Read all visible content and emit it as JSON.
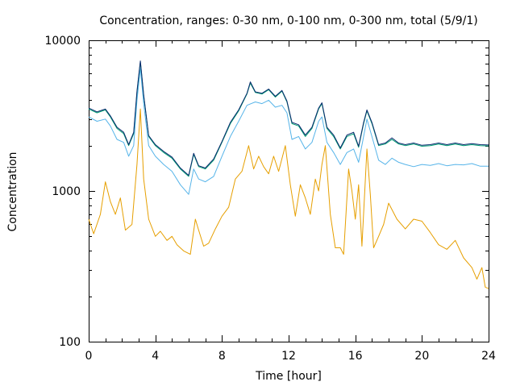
{
  "chart_data": {
    "type": "line",
    "title": "Concentration, ranges: 0-30 nm, 0-100 nm, 0-300 nm, total (5/9/1)",
    "xlabel": "Time [hour]",
    "ylabel": "Concentration",
    "xlim": [
      0,
      24
    ],
    "ylim": [
      100,
      10000
    ],
    "yscale": "log",
    "grid": false,
    "x_ticks": [
      0,
      4,
      8,
      12,
      16,
      20,
      24
    ],
    "y_ticks": [
      100,
      1000,
      10000
    ],
    "series": [
      {
        "color": "#e69f00",
        "points": [
          [
            0,
            650
          ],
          [
            0.3,
            520
          ],
          [
            0.7,
            700
          ],
          [
            1.0,
            1150
          ],
          [
            1.3,
            850
          ],
          [
            1.6,
            700
          ],
          [
            1.9,
            900
          ],
          [
            2.2,
            550
          ],
          [
            2.6,
            600
          ],
          [
            2.9,
            1500
          ],
          [
            3.1,
            3500
          ],
          [
            3.3,
            1200
          ],
          [
            3.6,
            650
          ],
          [
            4.0,
            500
          ],
          [
            4.3,
            540
          ],
          [
            4.7,
            470
          ],
          [
            5.0,
            500
          ],
          [
            5.3,
            440
          ],
          [
            5.7,
            400
          ],
          [
            6.1,
            380
          ],
          [
            6.4,
            650
          ],
          [
            6.6,
            550
          ],
          [
            6.9,
            430
          ],
          [
            7.2,
            450
          ],
          [
            7.6,
            560
          ],
          [
            8.0,
            680
          ],
          [
            8.4,
            780
          ],
          [
            8.8,
            1200
          ],
          [
            9.2,
            1350
          ],
          [
            9.6,
            2000
          ],
          [
            9.9,
            1400
          ],
          [
            10.2,
            1700
          ],
          [
            10.5,
            1450
          ],
          [
            10.8,
            1300
          ],
          [
            11.1,
            1700
          ],
          [
            11.4,
            1350
          ],
          [
            11.8,
            2000
          ],
          [
            12.1,
            1100
          ],
          [
            12.4,
            680
          ],
          [
            12.7,
            1100
          ],
          [
            13.0,
            900
          ],
          [
            13.3,
            700
          ],
          [
            13.6,
            1200
          ],
          [
            13.8,
            1000
          ],
          [
            14.0,
            1500
          ],
          [
            14.2,
            2000
          ],
          [
            14.5,
            700
          ],
          [
            14.8,
            420
          ],
          [
            15.1,
            420
          ],
          [
            15.3,
            380
          ],
          [
            15.6,
            1400
          ],
          [
            15.8,
            1000
          ],
          [
            16.0,
            650
          ],
          [
            16.2,
            1100
          ],
          [
            16.4,
            430
          ],
          [
            16.7,
            1900
          ],
          [
            16.9,
            950
          ],
          [
            17.1,
            420
          ],
          [
            17.4,
            500
          ],
          [
            17.7,
            600
          ],
          [
            18.0,
            830
          ],
          [
            18.5,
            650
          ],
          [
            19.0,
            560
          ],
          [
            19.5,
            650
          ],
          [
            20.0,
            630
          ],
          [
            20.5,
            530
          ],
          [
            21.0,
            440
          ],
          [
            21.5,
            410
          ],
          [
            22.0,
            470
          ],
          [
            22.5,
            360
          ],
          [
            23.0,
            310
          ],
          [
            23.3,
            260
          ],
          [
            23.6,
            310
          ],
          [
            23.8,
            230
          ],
          [
            24.0,
            225
          ]
        ]
      },
      {
        "color": "#56b4e9",
        "points": [
          [
            0,
            3100
          ],
          [
            0.5,
            2900
          ],
          [
            1.0,
            3000
          ],
          [
            1.3,
            2700
          ],
          [
            1.7,
            2200
          ],
          [
            2.1,
            2100
          ],
          [
            2.4,
            1700
          ],
          [
            2.7,
            2000
          ],
          [
            2.9,
            4000
          ],
          [
            3.1,
            6500
          ],
          [
            3.3,
            3800
          ],
          [
            3.6,
            2000
          ],
          [
            4.0,
            1700
          ],
          [
            4.5,
            1500
          ],
          [
            5.0,
            1350
          ],
          [
            5.5,
            1100
          ],
          [
            6.0,
            950
          ],
          [
            6.3,
            1400
          ],
          [
            6.6,
            1200
          ],
          [
            7.0,
            1150
          ],
          [
            7.5,
            1250
          ],
          [
            8.0,
            1700
          ],
          [
            8.5,
            2300
          ],
          [
            9.0,
            2900
          ],
          [
            9.5,
            3700
          ],
          [
            10.0,
            3900
          ],
          [
            10.4,
            3800
          ],
          [
            10.8,
            4000
          ],
          [
            11.2,
            3600
          ],
          [
            11.6,
            3700
          ],
          [
            11.9,
            3300
          ],
          [
            12.2,
            2200
          ],
          [
            12.6,
            2300
          ],
          [
            13.0,
            1900
          ],
          [
            13.4,
            2100
          ],
          [
            13.8,
            2900
          ],
          [
            14.0,
            3100
          ],
          [
            14.3,
            2100
          ],
          [
            14.7,
            1800
          ],
          [
            15.1,
            1500
          ],
          [
            15.5,
            1800
          ],
          [
            15.9,
            1900
          ],
          [
            16.2,
            1550
          ],
          [
            16.5,
            2300
          ],
          [
            16.7,
            3000
          ],
          [
            17.0,
            2300
          ],
          [
            17.4,
            1600
          ],
          [
            17.8,
            1500
          ],
          [
            18.2,
            1650
          ],
          [
            18.6,
            1550
          ],
          [
            19.0,
            1500
          ],
          [
            19.5,
            1450
          ],
          [
            20.0,
            1500
          ],
          [
            20.5,
            1480
          ],
          [
            21.0,
            1520
          ],
          [
            21.5,
            1470
          ],
          [
            22.0,
            1500
          ],
          [
            22.5,
            1490
          ],
          [
            23.0,
            1520
          ],
          [
            23.5,
            1460
          ],
          [
            24.0,
            1460
          ]
        ]
      },
      {
        "color": "#009e73",
        "points": [
          [
            0,
            3500
          ],
          [
            0.5,
            3300
          ],
          [
            1.0,
            3450
          ],
          [
            1.3,
            3100
          ],
          [
            1.7,
            2600
          ],
          [
            2.1,
            2400
          ],
          [
            2.4,
            2000
          ],
          [
            2.7,
            2400
          ],
          [
            2.9,
            4500
          ],
          [
            3.1,
            7200
          ],
          [
            3.3,
            4300
          ],
          [
            3.6,
            2300
          ],
          [
            4.0,
            2000
          ],
          [
            4.5,
            1800
          ],
          [
            5.0,
            1650
          ],
          [
            5.5,
            1400
          ],
          [
            6.0,
            1250
          ],
          [
            6.3,
            1750
          ],
          [
            6.6,
            1450
          ],
          [
            7.0,
            1400
          ],
          [
            7.5,
            1600
          ],
          [
            8.0,
            2100
          ],
          [
            8.5,
            2800
          ],
          [
            9.0,
            3400
          ],
          [
            9.5,
            4400
          ],
          [
            9.7,
            5200
          ],
          [
            10.0,
            4500
          ],
          [
            10.4,
            4400
          ],
          [
            10.8,
            4700
          ],
          [
            11.2,
            4200
          ],
          [
            11.6,
            4600
          ],
          [
            11.9,
            3900
          ],
          [
            12.2,
            2800
          ],
          [
            12.6,
            2700
          ],
          [
            13.0,
            2300
          ],
          [
            13.4,
            2600
          ],
          [
            13.8,
            3500
          ],
          [
            14.0,
            3800
          ],
          [
            14.3,
            2600
          ],
          [
            14.7,
            2300
          ],
          [
            15.1,
            1900
          ],
          [
            15.5,
            2300
          ],
          [
            15.9,
            2400
          ],
          [
            16.2,
            1950
          ],
          [
            16.5,
            2800
          ],
          [
            16.7,
            3400
          ],
          [
            17.0,
            2800
          ],
          [
            17.4,
            2000
          ],
          [
            17.8,
            2050
          ],
          [
            18.2,
            2200
          ],
          [
            18.6,
            2050
          ],
          [
            19.0,
            2000
          ],
          [
            19.5,
            2050
          ],
          [
            20.0,
            1980
          ],
          [
            20.5,
            2000
          ],
          [
            21.0,
            2050
          ],
          [
            21.5,
            2000
          ],
          [
            22.0,
            2050
          ],
          [
            22.5,
            2000
          ],
          [
            23.0,
            2030
          ],
          [
            23.5,
            2000
          ],
          [
            24.0,
            1990
          ]
        ]
      },
      {
        "color": "#0a2a6e",
        "points": [
          [
            0,
            3550
          ],
          [
            0.5,
            3350
          ],
          [
            1.0,
            3500
          ],
          [
            1.3,
            3150
          ],
          [
            1.7,
            2650
          ],
          [
            2.1,
            2450
          ],
          [
            2.4,
            2030
          ],
          [
            2.7,
            2450
          ],
          [
            2.9,
            4600
          ],
          [
            3.1,
            7300
          ],
          [
            3.3,
            4350
          ],
          [
            3.6,
            2330
          ],
          [
            4.0,
            2030
          ],
          [
            4.5,
            1830
          ],
          [
            5.0,
            1680
          ],
          [
            5.5,
            1420
          ],
          [
            6.0,
            1270
          ],
          [
            6.3,
            1780
          ],
          [
            6.6,
            1470
          ],
          [
            7.0,
            1420
          ],
          [
            7.5,
            1630
          ],
          [
            8.0,
            2130
          ],
          [
            8.5,
            2850
          ],
          [
            9.0,
            3450
          ],
          [
            9.5,
            4450
          ],
          [
            9.7,
            5300
          ],
          [
            10.0,
            4550
          ],
          [
            10.4,
            4450
          ],
          [
            10.8,
            4750
          ],
          [
            11.2,
            4250
          ],
          [
            11.6,
            4650
          ],
          [
            11.9,
            3950
          ],
          [
            12.2,
            2850
          ],
          [
            12.6,
            2750
          ],
          [
            13.0,
            2350
          ],
          [
            13.4,
            2650
          ],
          [
            13.8,
            3550
          ],
          [
            14.0,
            3850
          ],
          [
            14.3,
            2650
          ],
          [
            14.7,
            2350
          ],
          [
            15.1,
            1930
          ],
          [
            15.5,
            2350
          ],
          [
            15.9,
            2450
          ],
          [
            16.2,
            1980
          ],
          [
            16.5,
            2850
          ],
          [
            16.7,
            3450
          ],
          [
            17.0,
            2850
          ],
          [
            17.4,
            2030
          ],
          [
            17.8,
            2080
          ],
          [
            18.2,
            2250
          ],
          [
            18.6,
            2080
          ],
          [
            19.0,
            2030
          ],
          [
            19.5,
            2080
          ],
          [
            20.0,
            2010
          ],
          [
            20.5,
            2030
          ],
          [
            21.0,
            2080
          ],
          [
            21.5,
            2030
          ],
          [
            22.0,
            2080
          ],
          [
            22.5,
            2030
          ],
          [
            23.0,
            2060
          ],
          [
            23.5,
            2030
          ],
          [
            24.0,
            2020
          ]
        ]
      }
    ]
  }
}
